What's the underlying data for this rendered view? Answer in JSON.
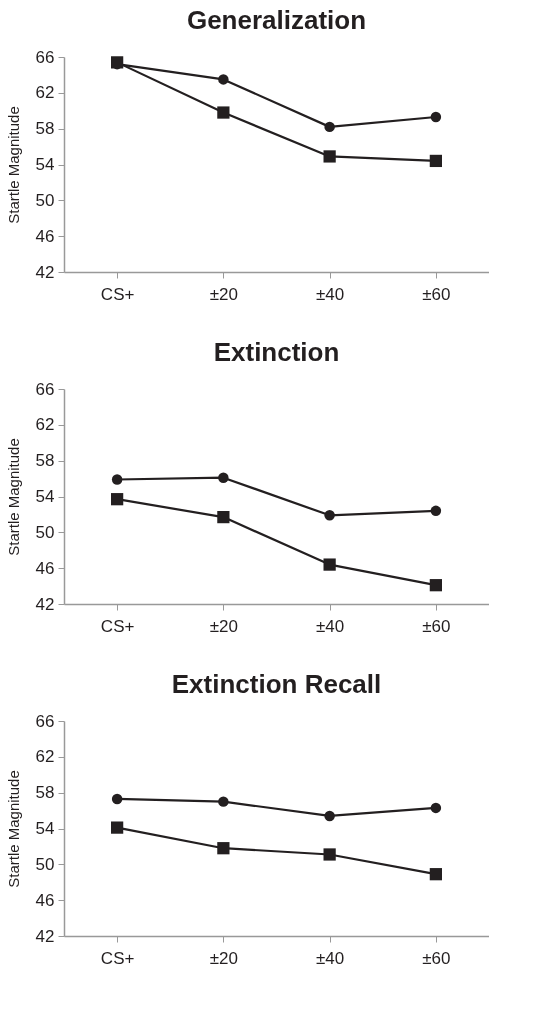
{
  "chart_data": [
    {
      "type": "line",
      "title": "Generalization",
      "ylabel": "Startle Magnitude",
      "categories": [
        "CS+",
        "±20",
        "±40",
        "±60"
      ],
      "ylim": [
        42,
        66
      ],
      "yticks": [
        42,
        46,
        50,
        54,
        58,
        62,
        66
      ],
      "grid": false,
      "line_style": "solid",
      "series": [
        {
          "color": "#231f20",
          "marker": "circle",
          "values": [
            65.2,
            63.5,
            58.2,
            59.3
          ]
        },
        {
          "color": "#231f20",
          "marker": "square",
          "values": [
            65.4,
            59.8,
            54.9,
            54.4
          ]
        }
      ]
    },
    {
      "type": "line",
      "title": "Extinction",
      "ylabel": "Startle Magnitude",
      "categories": [
        "CS+",
        "±20",
        "±40",
        "±60"
      ],
      "ylim": [
        42,
        66
      ],
      "yticks": [
        42,
        46,
        50,
        54,
        58,
        62,
        66
      ],
      "grid": false,
      "line_style": "solid",
      "series": [
        {
          "color": "#231f20",
          "marker": "circle",
          "values": [
            55.9,
            56.1,
            51.9,
            52.4
          ]
        },
        {
          "color": "#231f20",
          "marker": "square",
          "values": [
            53.7,
            51.7,
            46.4,
            44.1
          ]
        }
      ]
    },
    {
      "type": "line",
      "title": "Extinction Recall",
      "ylabel": "Startle Magnitude",
      "categories": [
        "CS+",
        "±20",
        "±40",
        "±60"
      ],
      "ylim": [
        42,
        66
      ],
      "yticks": [
        42,
        46,
        50,
        54,
        58,
        62,
        66
      ],
      "grid": false,
      "line_style": "solid",
      "series": [
        {
          "color": "#231f20",
          "marker": "circle",
          "values": [
            57.3,
            57.0,
            55.4,
            56.3
          ]
        },
        {
          "color": "#231f20",
          "marker": "square",
          "values": [
            54.1,
            51.8,
            51.1,
            48.9
          ]
        }
      ]
    }
  ]
}
